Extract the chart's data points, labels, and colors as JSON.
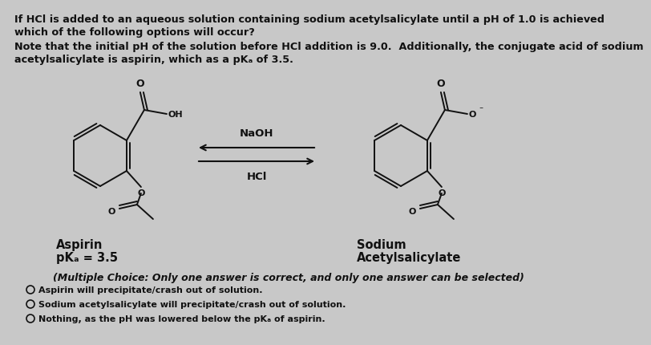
{
  "bg_color": "#c8c8c8",
  "title_line1": "If HCl is added to an aqueous solution containing sodium acetylsalicylate until a pH of 1.0 is achieved",
  "title_line2": "which of the following options will occur?",
  "note_line1": "Note that the initial pH of the solution before HCl addition is 9.0.  Additionally, the conjugate acid of sodium",
  "note_line2": "acetylsalicylate is aspirin, which as a pKₐ of 3.5.",
  "arrow_top": "NaOH",
  "arrow_bottom": "HCl",
  "label_left1": "Aspirin",
  "label_left2": "pKₐ = 3.5",
  "label_right1": "Sodium",
  "label_right2": "Acetylsalicylate",
  "multiple_choice_header": "(Multiple Choice: Only one answer is correct, and only one answer can be selected)",
  "options": [
    "Aspirin will precipitate/crash out of solution.",
    "Sodium acetylsalicylate will precipitate/crash out of solution.",
    "Nothing, as the pH was lowered below the pKₐ of aspirin."
  ],
  "text_color": "#111111",
  "title_fontsize": 9.2,
  "note_fontsize": 9.2,
  "label_fontsize": 10.5,
  "option_fontsize": 8.0,
  "mc_header_fontsize": 9.0,
  "struct_lw": 1.4,
  "struct_fontsize": 8.0
}
